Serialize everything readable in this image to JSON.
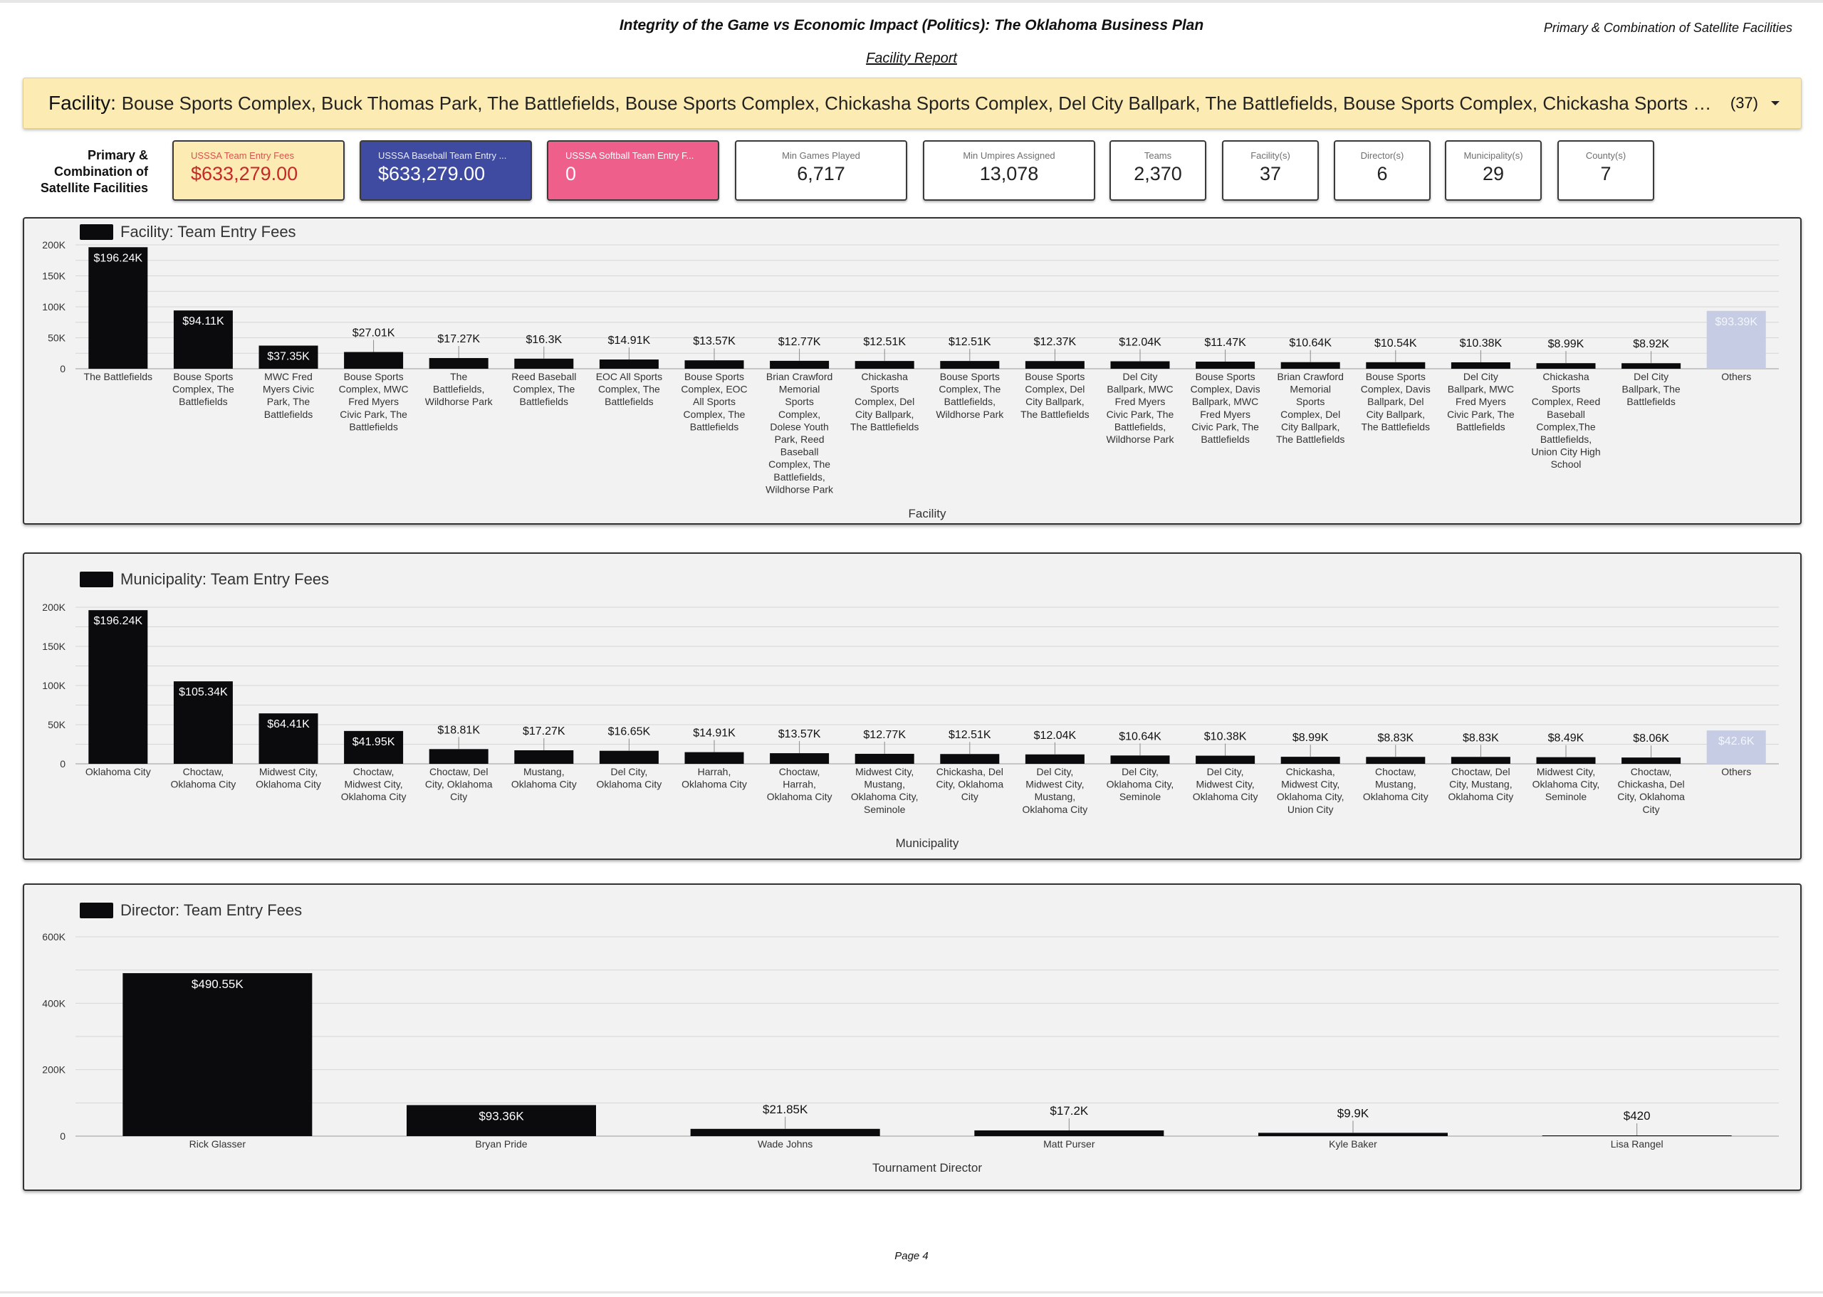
{
  "header": {
    "title": "Integrity of the Game vs Economic Impact (Politics): The Oklahoma Business Plan",
    "right_label": "Primary & Combination of Satellite Facilities",
    "subtitle": "Facility Report"
  },
  "facility_filter": {
    "label": "Facility",
    "separator": ":",
    "values": "Bouse Sports Complex, Buck Thomas Park, The Battlefields, Bouse Sports Complex, Chickasha Sports Complex, Del City Ballpark, The Battlefields, Bouse Sports Complex, Chickasha Sports Complex, The B…",
    "count": "(37)"
  },
  "kpi_section_label": "Primary & Combination of Satellite Facilities",
  "kpis": [
    {
      "label": "USSSA Team Entry Fees",
      "value": "$633,279.00",
      "bg": "#fcebb3",
      "label_color": "#d9534f",
      "value_color": "#c62828"
    },
    {
      "label": "USSSA Baseball Team Entry ...",
      "value": "$633,279.00",
      "bg": "#3f4aa1",
      "label_color": "#e8eaff",
      "value_color": "#ffffff"
    },
    {
      "label": "USSSA Softball Team Entry F...",
      "value": "0",
      "bg": "#ef5f8c",
      "label_color": "#ffffff",
      "value_color": "#ffffff"
    },
    {
      "label": "Min Games Played",
      "value": "6,717"
    },
    {
      "label": "Min Umpires Assigned",
      "value": "13,078"
    },
    {
      "label": "Teams",
      "value": "2,370"
    },
    {
      "label": "Facility(s)",
      "value": "37"
    },
    {
      "label": "Director(s)",
      "value": "6"
    },
    {
      "label": "Municipality(s)",
      "value": "29"
    },
    {
      "label": "County(s)",
      "value": "7"
    }
  ],
  "colors": {
    "bar": "#0b0b0d",
    "others_bar": "#c5cce3",
    "grid": "#d6d6d6",
    "panel_bg": "#f2f2f2"
  },
  "chart_data": [
    {
      "type": "bar",
      "legend": "Facility: Team Entry Fees",
      "xlabel": "Facility",
      "ylabel": "",
      "ylim": [
        0,
        200000
      ],
      "yticks": [
        0,
        50000,
        100000,
        150000,
        200000
      ],
      "ytick_labels": [
        "0",
        "50K",
        "100K",
        "150K",
        "200K"
      ],
      "categories": [
        "The Battlefields",
        "Bouse Sports Complex, The Battlefields",
        "MWC Fred Myers Civic Park, The Battlefields",
        "Bouse Sports Complex, MWC Fred Myers Civic Park, The Battlefields",
        "The Battlefields, Wildhorse Park",
        "Reed Baseball Complex, The Battlefields",
        "EOC All Sports Complex, The Battlefields",
        "Bouse Sports Complex, EOC All Sports Complex, The Battlefields",
        "Brian Crawford Memorial Sports Complex, Dolese Youth Park, Reed Baseball Complex, The Battlefields, Wildhorse Park",
        "Chickasha Sports Complex, Del City Ballpark, The Battlefields",
        "Bouse Sports Complex, The Battlefields, Wildhorse Park",
        "Bouse Sports Complex, Del City Ballpark, The Battlefields",
        "Del City Ballpark, MWC Fred Myers Civic Park, The Battlefields, Wildhorse Park",
        "Bouse Sports Complex, Davis Ballpark, MWC Fred Myers Civic Park, The Battlefields",
        "Brian Crawford Memorial Sports Complex, Del City Ballpark, The Battlefields",
        "Bouse Sports Complex, Davis Ballpark, Del City Ballpark, The Battlefields",
        "Del City Ballpark, MWC Fred Myers Civic Park, The Battlefields",
        "Chickasha Sports Complex, Reed Baseball Complex,The Battlefields, Union City High School",
        "Del City Ballpark, The Battlefields",
        "Others"
      ],
      "category_lines": [
        [
          "The Battlefields"
        ],
        [
          "Bouse Sports",
          "Complex, The",
          "Battlefields"
        ],
        [
          "MWC Fred",
          "Myers Civic",
          "Park, The",
          "Battlefields"
        ],
        [
          "Bouse Sports",
          "Complex, MWC",
          "Fred Myers",
          "Civic Park, The",
          "Battlefields"
        ],
        [
          "The",
          "Battlefields,",
          "Wildhorse Park"
        ],
        [
          "Reed Baseball",
          "Complex, The",
          "Battlefields"
        ],
        [
          "EOC All Sports",
          "Complex, The",
          "Battlefields"
        ],
        [
          "Bouse Sports",
          "Complex, EOC",
          "All Sports",
          "Complex, The",
          "Battlefields"
        ],
        [
          "Brian Crawford",
          "Memorial",
          "Sports",
          "Complex,",
          "Dolese Youth",
          "Park, Reed",
          "Baseball",
          "Complex, The",
          "Battlefields,",
          "Wildhorse Park"
        ],
        [
          "Chickasha",
          "Sports",
          "Complex, Del",
          "City Ballpark,",
          "The Battlefields"
        ],
        [
          "Bouse Sports",
          "Complex, The",
          "Battlefields,",
          "Wildhorse Park"
        ],
        [
          "Bouse Sports",
          "Complex, Del",
          "City Ballpark,",
          "The Battlefields"
        ],
        [
          "Del City",
          "Ballpark, MWC",
          "Fred Myers",
          "Civic Park, The",
          "Battlefields,",
          "Wildhorse Park"
        ],
        [
          "Bouse Sports",
          "Complex, Davis",
          "Ballpark, MWC",
          "Fred Myers",
          "Civic Park, The",
          "Battlefields"
        ],
        [
          "Brian Crawford",
          "Memorial",
          "Sports",
          "Complex, Del",
          "City Ballpark,",
          "The Battlefields"
        ],
        [
          "Bouse Sports",
          "Complex, Davis",
          "Ballpark, Del",
          "City Ballpark,",
          "The Battlefields"
        ],
        [
          "Del City",
          "Ballpark, MWC",
          "Fred Myers",
          "Civic Park, The",
          "Battlefields"
        ],
        [
          "Chickasha",
          "Sports",
          "Complex, Reed",
          "Baseball",
          "Complex,The",
          "Battlefields,",
          "Union City High",
          "School"
        ],
        [
          "Del City",
          "Ballpark, The",
          "Battlefields"
        ],
        [
          "Others"
        ]
      ],
      "values": [
        196240,
        94110,
        37350,
        27010,
        17270,
        16300,
        14910,
        13570,
        12770,
        12510,
        12510,
        12370,
        12040,
        11470,
        10640,
        10540,
        10380,
        8990,
        8920,
        93390
      ],
      "data_labels": [
        "$196.24K",
        "$94.11K",
        "$37.35K",
        "$27.01K",
        "$17.27K",
        "$16.3K",
        "$14.91K",
        "$13.57K",
        "$12.77K",
        "$12.51K",
        "$12.51K",
        "$12.37K",
        "$12.04K",
        "$11.47K",
        "$10.64K",
        "$10.54K",
        "$10.38K",
        "$8.99K",
        "$8.92K",
        "$93.39K"
      ],
      "others_index": 19
    },
    {
      "type": "bar",
      "legend": "Municipality: Team Entry Fees",
      "xlabel": "Municipality",
      "ylabel": "",
      "ylim": [
        0,
        200000
      ],
      "yticks": [
        0,
        50000,
        100000,
        150000,
        200000
      ],
      "ytick_labels": [
        "0",
        "50K",
        "100K",
        "150K",
        "200K"
      ],
      "categories": [
        "Oklahoma City",
        "Choctaw, Oklahoma City",
        "Midwest City, Oklahoma City",
        "Choctaw, Midwest City, Oklahoma City",
        "Choctaw, Del City, Oklahoma City",
        "Mustang, Oklahoma City",
        "Del City, Oklahoma City",
        "Harrah, Oklahoma City",
        "Choctaw, Harrah, Oklahoma City",
        "Midwest City, Mustang, Oklahoma City, Seminole",
        "Chickasha, Del City, Oklahoma City",
        "Del City, Midwest City, Mustang, Oklahoma City",
        "Del City, Oklahoma City, Seminole",
        "Del City, Midwest City, Oklahoma City",
        "Chickasha, Midwest City, Oklahoma City, Union City",
        "Choctaw, Mustang, Oklahoma City",
        "Choctaw, Del City, Mustang, Oklahoma City",
        "Midwest City, Oklahoma City, Seminole",
        "Choctaw, Chickasha, Del City, Oklahoma City",
        "Others"
      ],
      "category_lines": [
        [
          "Oklahoma City"
        ],
        [
          "Choctaw,",
          "Oklahoma City"
        ],
        [
          "Midwest City,",
          "Oklahoma City"
        ],
        [
          "Choctaw,",
          "Midwest City,",
          "Oklahoma City"
        ],
        [
          "Choctaw, Del",
          "City, Oklahoma",
          "City"
        ],
        [
          "Mustang,",
          "Oklahoma City"
        ],
        [
          "Del City,",
          "Oklahoma City"
        ],
        [
          "Harrah,",
          "Oklahoma City"
        ],
        [
          "Choctaw,",
          "Harrah,",
          "Oklahoma City"
        ],
        [
          "Midwest City,",
          "Mustang,",
          "Oklahoma City,",
          "Seminole"
        ],
        [
          "Chickasha, Del",
          "City, Oklahoma",
          "City"
        ],
        [
          "Del City,",
          "Midwest City,",
          "Mustang,",
          "Oklahoma City"
        ],
        [
          "Del City,",
          "Oklahoma City,",
          "Seminole"
        ],
        [
          "Del City,",
          "Midwest City,",
          "Oklahoma City"
        ],
        [
          "Chickasha,",
          "Midwest City,",
          "Oklahoma City,",
          "Union City"
        ],
        [
          "Choctaw,",
          "Mustang,",
          "Oklahoma City"
        ],
        [
          "Choctaw, Del",
          "City, Mustang,",
          "Oklahoma City"
        ],
        [
          "Midwest City,",
          "Oklahoma City,",
          "Seminole"
        ],
        [
          "Choctaw,",
          "Chickasha, Del",
          "City, Oklahoma",
          "City"
        ],
        [
          "Others"
        ]
      ],
      "values": [
        196240,
        105340,
        64410,
        41950,
        18810,
        17270,
        16650,
        14910,
        13570,
        12770,
        12510,
        12040,
        10640,
        10380,
        8990,
        8830,
        8830,
        8490,
        8060,
        42600
      ],
      "data_labels": [
        "$196.24K",
        "$105.34K",
        "$64.41K",
        "$41.95K",
        "$18.81K",
        "$17.27K",
        "$16.65K",
        "$14.91K",
        "$13.57K",
        "$12.77K",
        "$12.51K",
        "$12.04K",
        "$10.64K",
        "$10.38K",
        "$8.99K",
        "$8.83K",
        "$8.83K",
        "$8.49K",
        "$8.06K",
        "$42.6K"
      ],
      "others_index": 19
    },
    {
      "type": "bar",
      "legend": "Director: Team Entry Fees",
      "xlabel": "Tournament Director",
      "ylabel": "",
      "ylim": [
        0,
        600000
      ],
      "yticks": [
        0,
        200000,
        400000,
        600000
      ],
      "ytick_labels": [
        "0",
        "200K",
        "400K",
        "600K"
      ],
      "categories": [
        "Rick Glasser",
        "Bryan Pride",
        "Wade Johns",
        "Matt Purser",
        "Kyle Baker",
        "Lisa Rangel"
      ],
      "category_lines": [
        [
          "Rick Glasser"
        ],
        [
          "Bryan Pride"
        ],
        [
          "Wade Johns"
        ],
        [
          "Matt Purser"
        ],
        [
          "Kyle Baker"
        ],
        [
          "Lisa Rangel"
        ]
      ],
      "values": [
        490550,
        93360,
        21850,
        17200,
        9900,
        420
      ],
      "data_labels": [
        "$490.55K",
        "$93.36K",
        "$21.85K",
        "$17.2K",
        "$9.9K",
        "$420"
      ],
      "others_index": -1
    }
  ],
  "footer": {
    "page": "Page 4"
  }
}
